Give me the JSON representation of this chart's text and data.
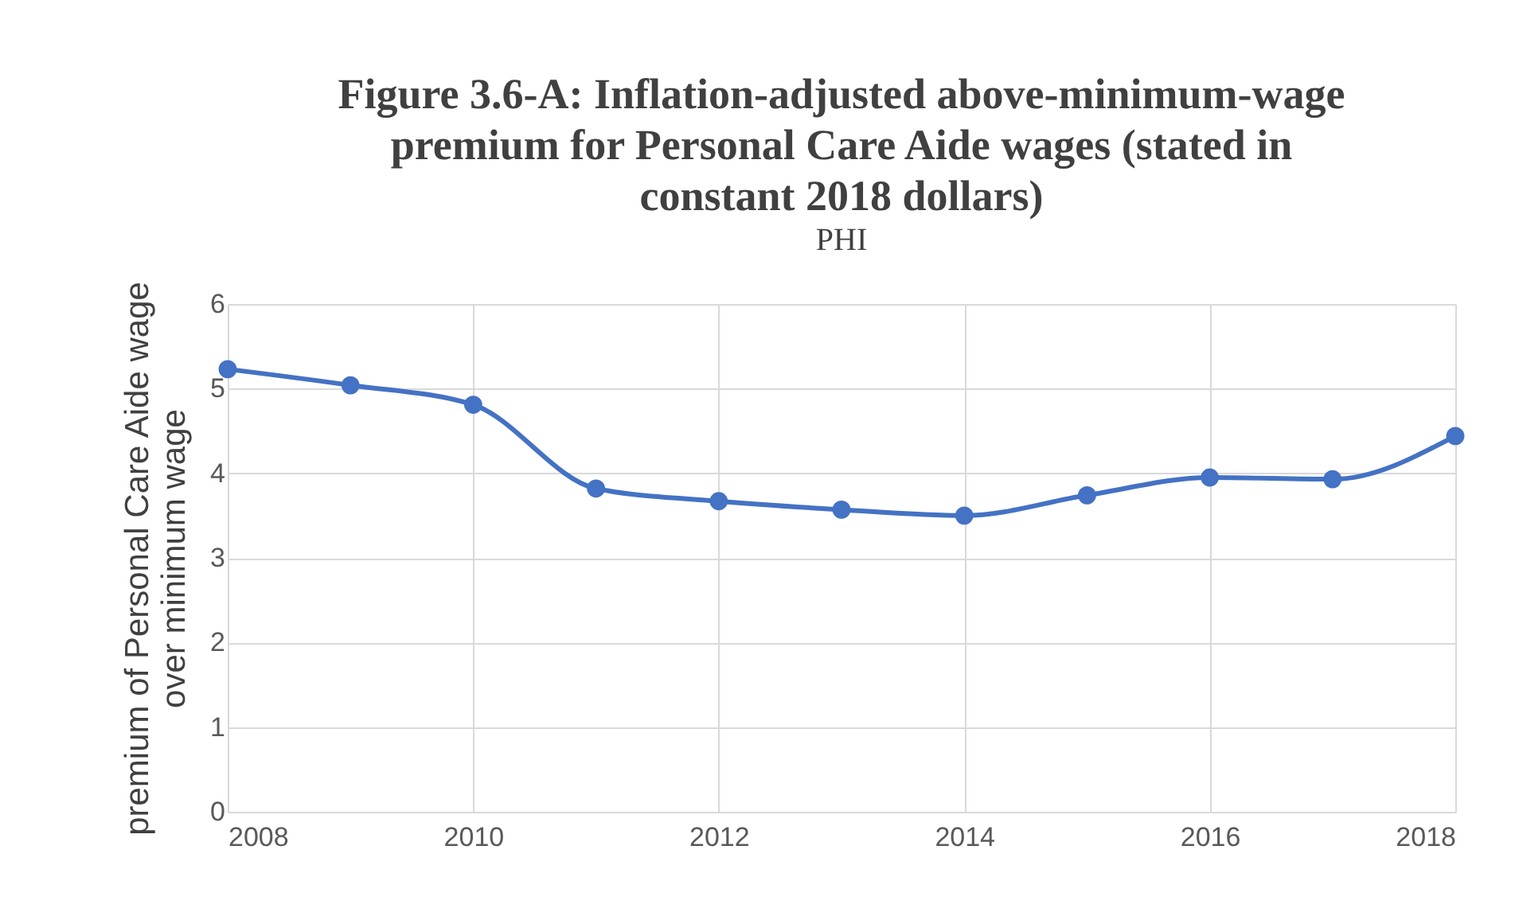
{
  "chart_data": {
    "type": "line",
    "title": "Figure 3.6-A: Inflation-adjusted above-minimum-wage premium for Personal Care Aide wages (stated in constant 2018 dollars)",
    "subtitle": "PHI",
    "ylabel": "premium of Personal Care Aide wage over minimum wage",
    "x": [
      2008,
      2009,
      2010,
      2011,
      2012,
      2013,
      2014,
      2015,
      2016,
      2017,
      2018
    ],
    "series": [
      {
        "color": "#4472c4",
        "values": [
          5.23,
          5.04,
          4.81,
          3.82,
          3.67,
          3.57,
          3.5,
          3.74,
          3.95,
          3.93,
          4.44
        ]
      }
    ],
    "xlim": [
      2008,
      2018
    ],
    "xticks": [
      2008,
      2010,
      2012,
      2014,
      2016,
      2018
    ],
    "ylim": [
      0,
      6
    ],
    "yticks": [
      0,
      1,
      2,
      3,
      4,
      5,
      6
    ],
    "grid": true,
    "marker": "circle",
    "line_style": "solid"
  }
}
